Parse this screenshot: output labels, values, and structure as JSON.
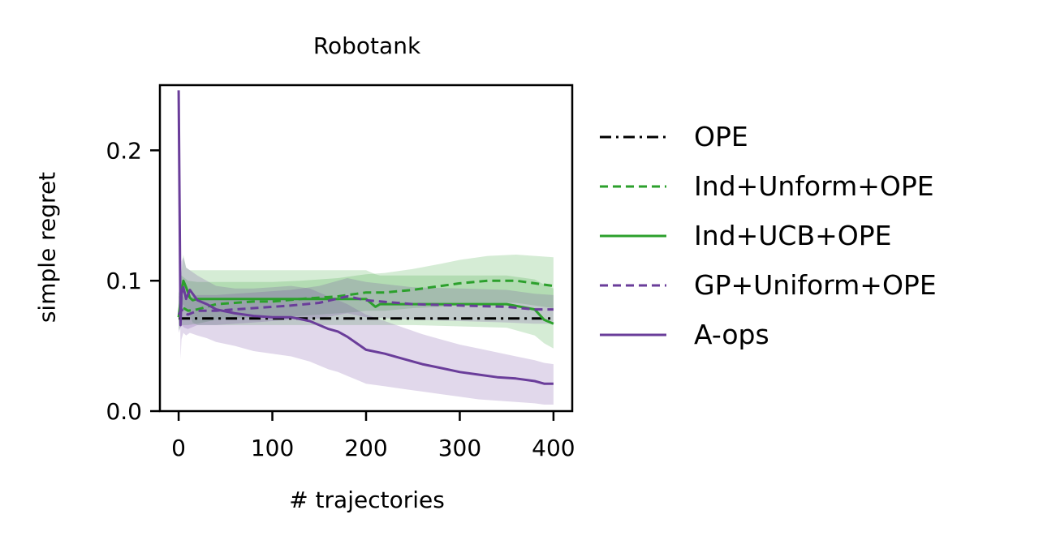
{
  "chart_data": {
    "type": "line",
    "title": "Robotank",
    "xlabel": "# trajectories",
    "ylabel": "simple regret",
    "xlim": [
      -20,
      420
    ],
    "ylim": [
      0,
      0.25
    ],
    "xticks": [
      0,
      100,
      200,
      300,
      400
    ],
    "xtick_labels": [
      "0",
      "100",
      "200",
      "300",
      "400"
    ],
    "yticks": [
      0.0,
      0.1,
      0.2
    ],
    "ytick_labels": [
      "0.0",
      "0.1",
      "0.2"
    ],
    "legend_position": "right, outside",
    "grid": false,
    "series": [
      {
        "name": "OPE",
        "color": "#000000",
        "style": "dashdot",
        "x": [
          0,
          400
        ],
        "y": [
          0.071,
          0.071
        ],
        "band": null
      },
      {
        "name": "Ind+Unform+OPE",
        "color": "#2ca02c",
        "style": "dashed",
        "x": [
          0,
          3,
          10,
          20,
          40,
          60,
          80,
          100,
          130,
          150,
          170,
          190,
          200,
          220,
          250,
          280,
          300,
          330,
          360,
          380,
          400
        ],
        "y": [
          0.072,
          0.08,
          0.077,
          0.078,
          0.082,
          0.083,
          0.084,
          0.084,
          0.086,
          0.087,
          0.088,
          0.09,
          0.091,
          0.091,
          0.093,
          0.096,
          0.098,
          0.1,
          0.1,
          0.098,
          0.096
        ],
        "band_low": [
          0.062,
          0.066,
          0.066,
          0.067,
          0.07,
          0.071,
          0.072,
          0.072,
          0.073,
          0.074,
          0.075,
          0.076,
          0.077,
          0.077,
          0.079,
          0.08,
          0.082,
          0.083,
          0.083,
          0.081,
          0.079
        ],
        "band_high": [
          0.09,
          0.104,
          0.1,
          0.099,
          0.099,
          0.099,
          0.099,
          0.099,
          0.1,
          0.101,
          0.102,
          0.104,
          0.105,
          0.106,
          0.109,
          0.113,
          0.116,
          0.119,
          0.12,
          0.119,
          0.118
        ]
      },
      {
        "name": "Ind+UCB+OPE",
        "color": "#2ca02c",
        "style": "solid",
        "x": [
          0,
          2,
          5,
          8,
          12,
          15,
          20,
          30,
          40,
          60,
          100,
          150,
          200,
          210,
          215,
          250,
          300,
          350,
          380,
          390,
          400
        ],
        "y": [
          0.072,
          0.085,
          0.1,
          0.095,
          0.087,
          0.085,
          0.086,
          0.086,
          0.086,
          0.086,
          0.086,
          0.086,
          0.086,
          0.08,
          0.082,
          0.082,
          0.082,
          0.082,
          0.078,
          0.07,
          0.067
        ],
        "band_low": [
          0.066,
          0.075,
          0.082,
          0.078,
          0.073,
          0.068,
          0.066,
          0.066,
          0.066,
          0.066,
          0.066,
          0.066,
          0.066,
          0.066,
          0.066,
          0.066,
          0.065,
          0.064,
          0.058,
          0.052,
          0.048
        ],
        "band_high": [
          0.09,
          0.1,
          0.12,
          0.11,
          0.108,
          0.108,
          0.108,
          0.108,
          0.108,
          0.108,
          0.108,
          0.108,
          0.108,
          0.105,
          0.104,
          0.104,
          0.104,
          0.104,
          0.101,
          0.097,
          0.094
        ]
      },
      {
        "name": "GP+Uniform+OPE",
        "color": "#6a3d9a",
        "style": "dashed",
        "x": [
          0,
          3,
          6,
          10,
          20,
          40,
          60,
          80,
          100,
          120,
          150,
          180,
          200,
          250,
          300,
          350,
          380,
          400
        ],
        "y": [
          0.074,
          0.078,
          0.075,
          0.074,
          0.077,
          0.077,
          0.078,
          0.079,
          0.08,
          0.081,
          0.083,
          0.088,
          0.085,
          0.082,
          0.081,
          0.08,
          0.078,
          0.078
        ],
        "band_low": [
          0.06,
          0.066,
          0.064,
          0.063,
          0.066,
          0.066,
          0.067,
          0.068,
          0.069,
          0.07,
          0.071,
          0.075,
          0.072,
          0.07,
          0.069,
          0.068,
          0.067,
          0.067
        ],
        "band_high": [
          0.088,
          0.09,
          0.087,
          0.086,
          0.089,
          0.089,
          0.09,
          0.091,
          0.092,
          0.093,
          0.096,
          0.102,
          0.099,
          0.095,
          0.094,
          0.093,
          0.09,
          0.089
        ]
      },
      {
        "name": "A-ops",
        "color": "#6a3d9a",
        "style": "solid",
        "x": [
          0,
          2,
          3,
          5,
          8,
          12,
          20,
          30,
          40,
          60,
          80,
          100,
          120,
          140,
          150,
          160,
          170,
          180,
          190,
          200,
          220,
          240,
          260,
          280,
          300,
          320,
          340,
          360,
          380,
          390,
          400
        ],
        "y": [
          0.246,
          0.066,
          0.09,
          0.095,
          0.086,
          0.093,
          0.085,
          0.082,
          0.078,
          0.075,
          0.073,
          0.072,
          0.072,
          0.069,
          0.066,
          0.063,
          0.061,
          0.057,
          0.052,
          0.047,
          0.044,
          0.04,
          0.036,
          0.033,
          0.03,
          0.028,
          0.026,
          0.025,
          0.023,
          0.021,
          0.021
        ],
        "band_low": [
          0.24,
          0.04,
          0.055,
          0.06,
          0.058,
          0.06,
          0.058,
          0.056,
          0.053,
          0.05,
          0.046,
          0.044,
          0.042,
          0.038,
          0.035,
          0.032,
          0.03,
          0.027,
          0.024,
          0.021,
          0.019,
          0.017,
          0.015,
          0.013,
          0.011,
          0.009,
          0.008,
          0.007,
          0.006,
          0.005,
          0.005
        ],
        "band_high": [
          0.25,
          0.09,
          0.115,
          0.118,
          0.11,
          0.108,
          0.104,
          0.1,
          0.096,
          0.094,
          0.094,
          0.095,
          0.096,
          0.094,
          0.091,
          0.088,
          0.085,
          0.082,
          0.078,
          0.074,
          0.069,
          0.064,
          0.059,
          0.055,
          0.051,
          0.048,
          0.045,
          0.042,
          0.039,
          0.037,
          0.036
        ]
      }
    ]
  }
}
